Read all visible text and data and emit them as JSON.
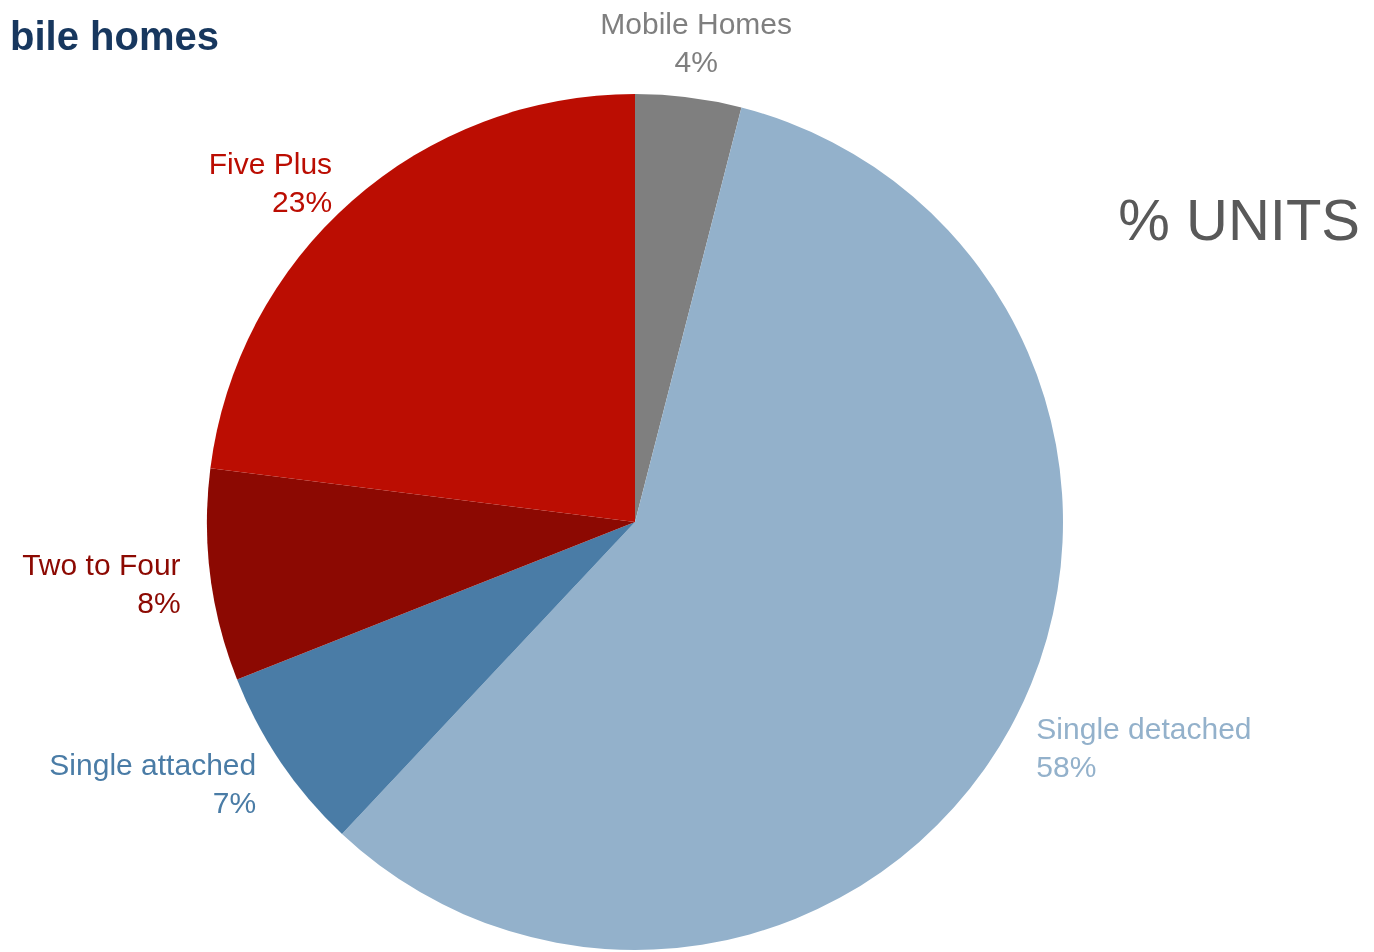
{
  "chart_data": {
    "type": "pie",
    "title": "bile homes",
    "subtitle": "% UNITS",
    "categories": [
      "Mobile Homes",
      "Single detached",
      "Single attached",
      "Two to Four",
      "Five Plus"
    ],
    "values": [
      4,
      58,
      7,
      8,
      23
    ],
    "value_labels": [
      "4%",
      "58%",
      "7%",
      "8%",
      "23%"
    ],
    "colors": [
      "#7f7f7f",
      "#93b1cb",
      "#4a7ca6",
      "#8c0902",
      "#bb0d02"
    ]
  }
}
